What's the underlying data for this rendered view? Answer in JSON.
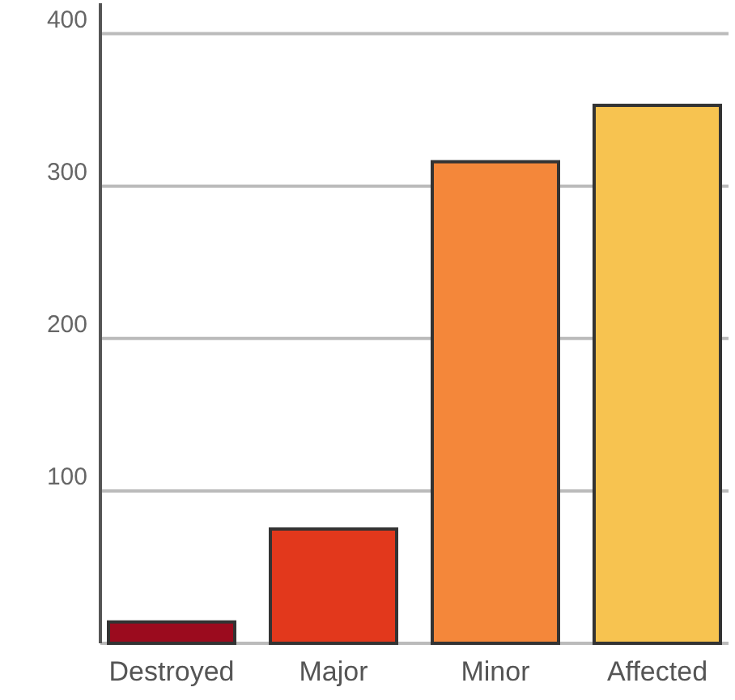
{
  "chart_data": {
    "type": "bar",
    "categories": [
      "Destroyed",
      "Major",
      "Minor",
      "Affected"
    ],
    "values": [
      14,
      75,
      316,
      353
    ],
    "colors": [
      "#9b0b1e",
      "#e2381c",
      "#f4873a",
      "#f7c350"
    ],
    "ylim": [
      0,
      420
    ],
    "yticks": [
      {
        "value": 0,
        "label": null
      },
      100,
      200,
      300,
      400
    ],
    "grid": "y"
  }
}
